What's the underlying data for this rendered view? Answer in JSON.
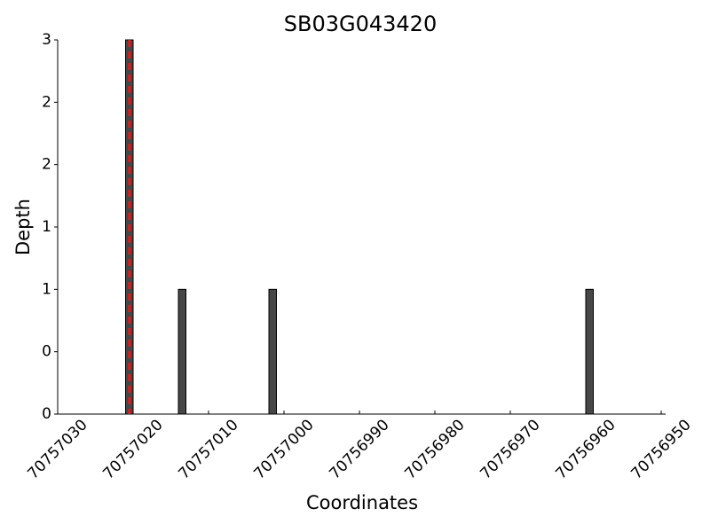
{
  "chart_data": {
    "type": "bar",
    "title": "SB03G043420",
    "x_label": "Coordinates",
    "y_label": "Depth",
    "x": [
      70757021,
      70757014,
      70757002,
      70756960
    ],
    "values": [
      3,
      1,
      1,
      1
    ],
    "color": "#474747",
    "vline": 70757020.5,
    "vline_color": "#e31a1c",
    "xlim": [
      70757030,
      70756950
    ],
    "xticks": [
      70757030,
      70757020,
      70757010,
      70757000,
      70756990,
      70756980,
      70756970,
      70756960,
      70756950
    ],
    "ylim": [
      0,
      3
    ],
    "yticks": [
      0,
      {
        "value": 0.5,
        "label": "0"
      },
      1,
      {
        "value": 1.5,
        "label": "1"
      },
      2,
      {
        "value": 2.5,
        "label": "2"
      },
      3
    ]
  }
}
